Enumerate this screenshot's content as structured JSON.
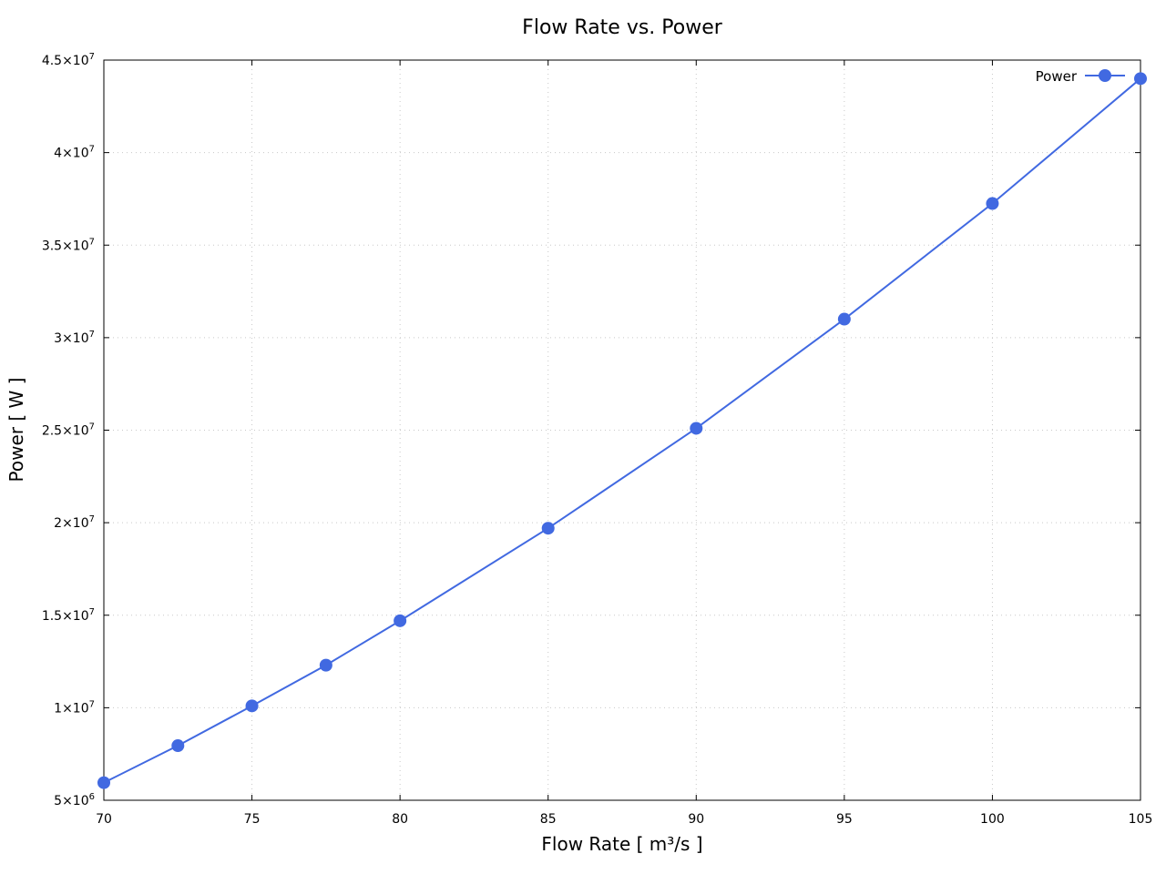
{
  "chart_data": {
    "type": "line",
    "title": "Flow Rate vs. Power",
    "xlabel": "Flow Rate [ m³/s ]",
    "ylabel": "Power [ W ]",
    "xlim": [
      70,
      105
    ],
    "ylim": [
      5000000,
      45000000
    ],
    "x_ticks": [
      70,
      75,
      80,
      85,
      90,
      95,
      100,
      105
    ],
    "x_tick_labels": [
      "70",
      "75",
      "80",
      "85",
      "90",
      "95",
      "100",
      "105"
    ],
    "y_ticks": [
      5000000,
      10000000,
      15000000,
      20000000,
      25000000,
      30000000,
      35000000,
      40000000,
      45000000
    ],
    "y_tick_labels": [
      {
        "mantissa": "5",
        "exponent": "6"
      },
      {
        "mantissa": "1",
        "exponent": "7"
      },
      {
        "mantissa": "1.5",
        "exponent": "7"
      },
      {
        "mantissa": "2",
        "exponent": "7"
      },
      {
        "mantissa": "2.5",
        "exponent": "7"
      },
      {
        "mantissa": "3",
        "exponent": "7"
      },
      {
        "mantissa": "3.5",
        "exponent": "7"
      },
      {
        "mantissa": "4",
        "exponent": "7"
      },
      {
        "mantissa": "4.5",
        "exponent": "7"
      }
    ],
    "grid": true,
    "legend_position": "top-right",
    "series": [
      {
        "name": "Power",
        "color": "#4169e1",
        "marker": "circle",
        "x": [
          70,
          72.5,
          75,
          77.5,
          80,
          85,
          90,
          95,
          100,
          105
        ],
        "y": [
          5950000,
          7950000,
          10100000,
          12300000,
          14700000,
          19700000,
          25100000,
          31000000,
          37250000,
          44000000
        ]
      }
    ]
  }
}
